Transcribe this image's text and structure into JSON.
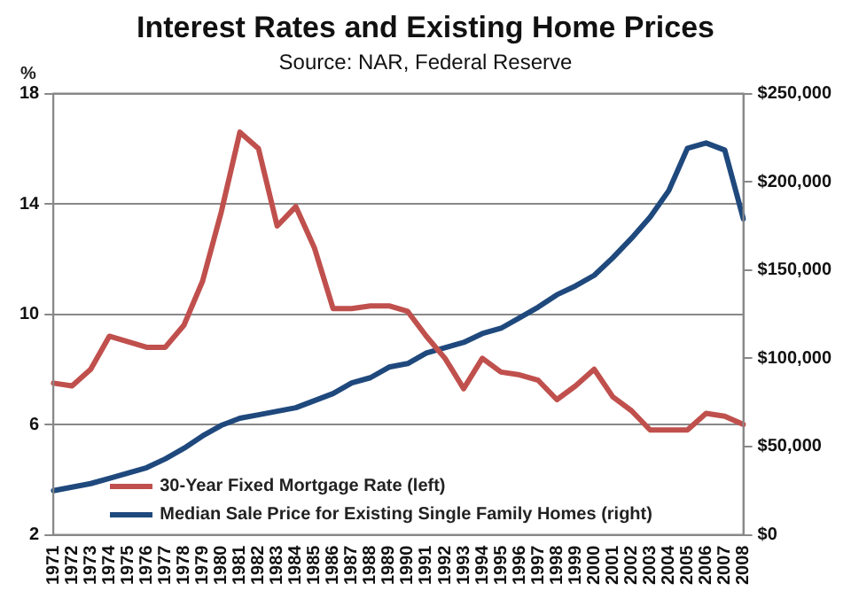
{
  "chart_data": {
    "type": "line",
    "title": "Interest Rates and Existing Home Prices",
    "subtitle": "Source: NAR, Federal Reserve",
    "ylabel": "%",
    "categories": [
      "1971",
      "1972",
      "1973",
      "1974",
      "1975",
      "1976",
      "1977",
      "1978",
      "1979",
      "1980",
      "1981",
      "1982",
      "1983",
      "1984",
      "1985",
      "1986",
      "1987",
      "1988",
      "1989",
      "1990",
      "1991",
      "1992",
      "1993",
      "1994",
      "1995",
      "1996",
      "1997",
      "1998",
      "1999",
      "2000",
      "2001",
      "2002",
      "2003",
      "2004",
      "2005",
      "2006",
      "2007",
      "2008"
    ],
    "series": [
      {
        "name": "30-Year Fixed Mortgage Rate (left)",
        "color": "#c0504d",
        "values": [
          7.5,
          7.4,
          8.0,
          9.2,
          9.0,
          8.8,
          8.8,
          9.6,
          11.2,
          13.7,
          16.6,
          16.0,
          13.2,
          13.9,
          12.4,
          10.2,
          10.2,
          10.3,
          10.3,
          10.1,
          9.2,
          8.4,
          7.3,
          8.4,
          7.9,
          7.8,
          7.6,
          6.9,
          7.4,
          8.0,
          7.0,
          6.5,
          5.8,
          5.8,
          5.8,
          6.4,
          6.3,
          6.0
        ]
      },
      {
        "name": "Median Sale Price for Existing Single Family Homes (right)",
        "color": "#1f497d",
        "axis": "y2",
        "values": [
          25000,
          27000,
          29000,
          32000,
          35000,
          38000,
          43000,
          49000,
          56000,
          62000,
          66000,
          68000,
          70000,
          72000,
          76000,
          80000,
          86000,
          89000,
          95000,
          97000,
          103000,
          106000,
          109000,
          114000,
          117000,
          123000,
          129000,
          136000,
          141000,
          147000,
          157000,
          168000,
          180000,
          195000,
          219000,
          222000,
          218000,
          179000
        ]
      }
    ],
    "ylim": [
      2,
      18
    ],
    "yticks": [
      2,
      6,
      10,
      14,
      18
    ],
    "y2lim": [
      0,
      250000
    ],
    "y2ticks": [
      {
        "value": 0,
        "label": "$0"
      },
      {
        "value": 50000,
        "label": "$50,000"
      },
      {
        "value": 100000,
        "label": "$100,000"
      },
      {
        "value": 150000,
        "label": "$150,000"
      },
      {
        "value": 200000,
        "label": "$200,000"
      },
      {
        "value": 250000,
        "label": "$250,000"
      }
    ],
    "grid": "y",
    "legend": "bottom left",
    "marker": "none",
    "line_style": "solid"
  }
}
